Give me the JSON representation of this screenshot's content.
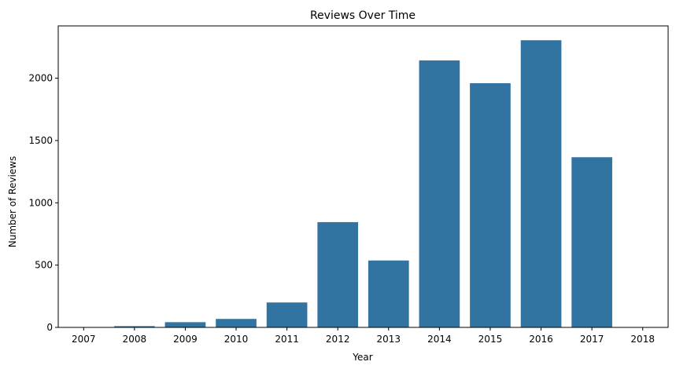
{
  "chart_data": {
    "type": "bar",
    "title": "Reviews Over Time",
    "xlabel": "Year",
    "ylabel": "Number of Reviews",
    "categories": [
      "2007",
      "2008",
      "2009",
      "2010",
      "2011",
      "2012",
      "2013",
      "2014",
      "2015",
      "2016",
      "2017",
      "2018"
    ],
    "values": [
      3,
      10,
      42,
      68,
      200,
      845,
      537,
      2143,
      1960,
      2305,
      1366,
      3
    ],
    "ylim": [
      0,
      2420
    ],
    "yticks": [
      "0",
      "500",
      "1000",
      "1500",
      "2000"
    ],
    "bar_color": "#3274a1",
    "grid": false,
    "legend": "none"
  }
}
